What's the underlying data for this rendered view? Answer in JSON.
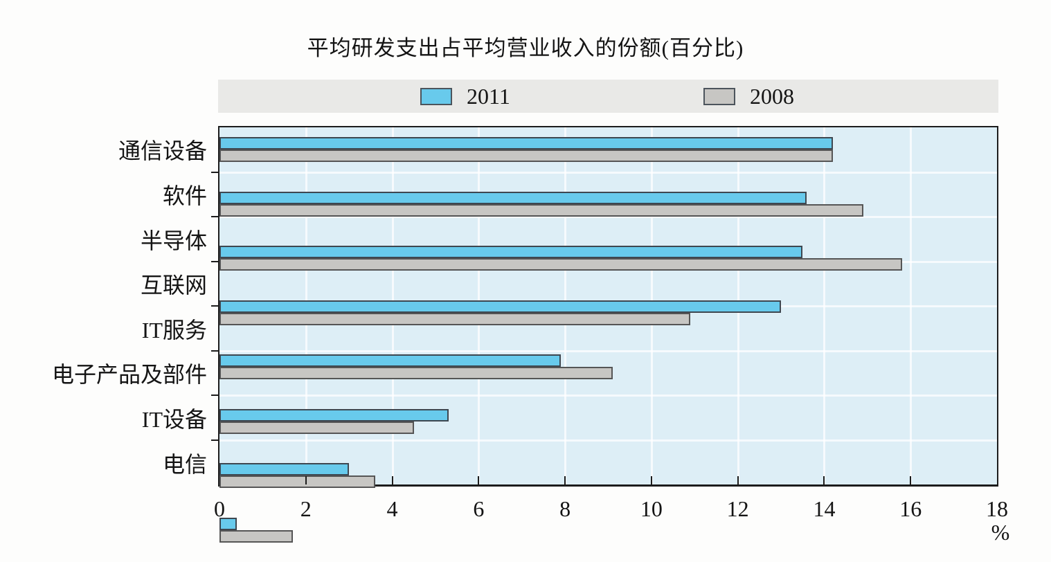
{
  "title": "平均研发支出占平均营业收入的份额(百分比)",
  "legend": {
    "items": [
      {
        "label": "2011",
        "color": "#68caec"
      },
      {
        "label": "2008",
        "color": "#c7c6c3"
      }
    ]
  },
  "x_axis": {
    "unit_label": "%",
    "tick_labels": [
      "0",
      "2",
      "4",
      "6",
      "8",
      "10",
      "12",
      "14",
      "16",
      "18"
    ]
  },
  "chart_data": {
    "type": "bar",
    "orientation": "horizontal",
    "title": "平均研发支出占平均营业收入的份额(百分比)",
    "categories": [
      "通信设备",
      "软件",
      "半导体",
      "互联网",
      "IT服务",
      "电子产品及部件",
      "IT设备",
      "电信"
    ],
    "series": [
      {
        "name": "2011",
        "color": "#68caec",
        "border_color": "#3e4750",
        "values": [
          14.2,
          13.6,
          13.5,
          13.0,
          7.9,
          5.3,
          3.0,
          0.4
        ]
      },
      {
        "name": "2008",
        "color": "#c7c6c3",
        "border_color": "#555555",
        "values": [
          14.2,
          14.9,
          15.8,
          10.9,
          9.1,
          4.5,
          3.6,
          1.7
        ]
      }
    ],
    "xlabel": "%",
    "xlim": [
      0,
      18
    ],
    "xticks": [
      0,
      2,
      4,
      6,
      8,
      10,
      12,
      14,
      16,
      18
    ],
    "grid": true,
    "gridline_color": "rgba(255,255,255,0.72)",
    "plot_background": "#ddeef6",
    "legend_background": "#e9e9e7",
    "legend_position": "top"
  }
}
